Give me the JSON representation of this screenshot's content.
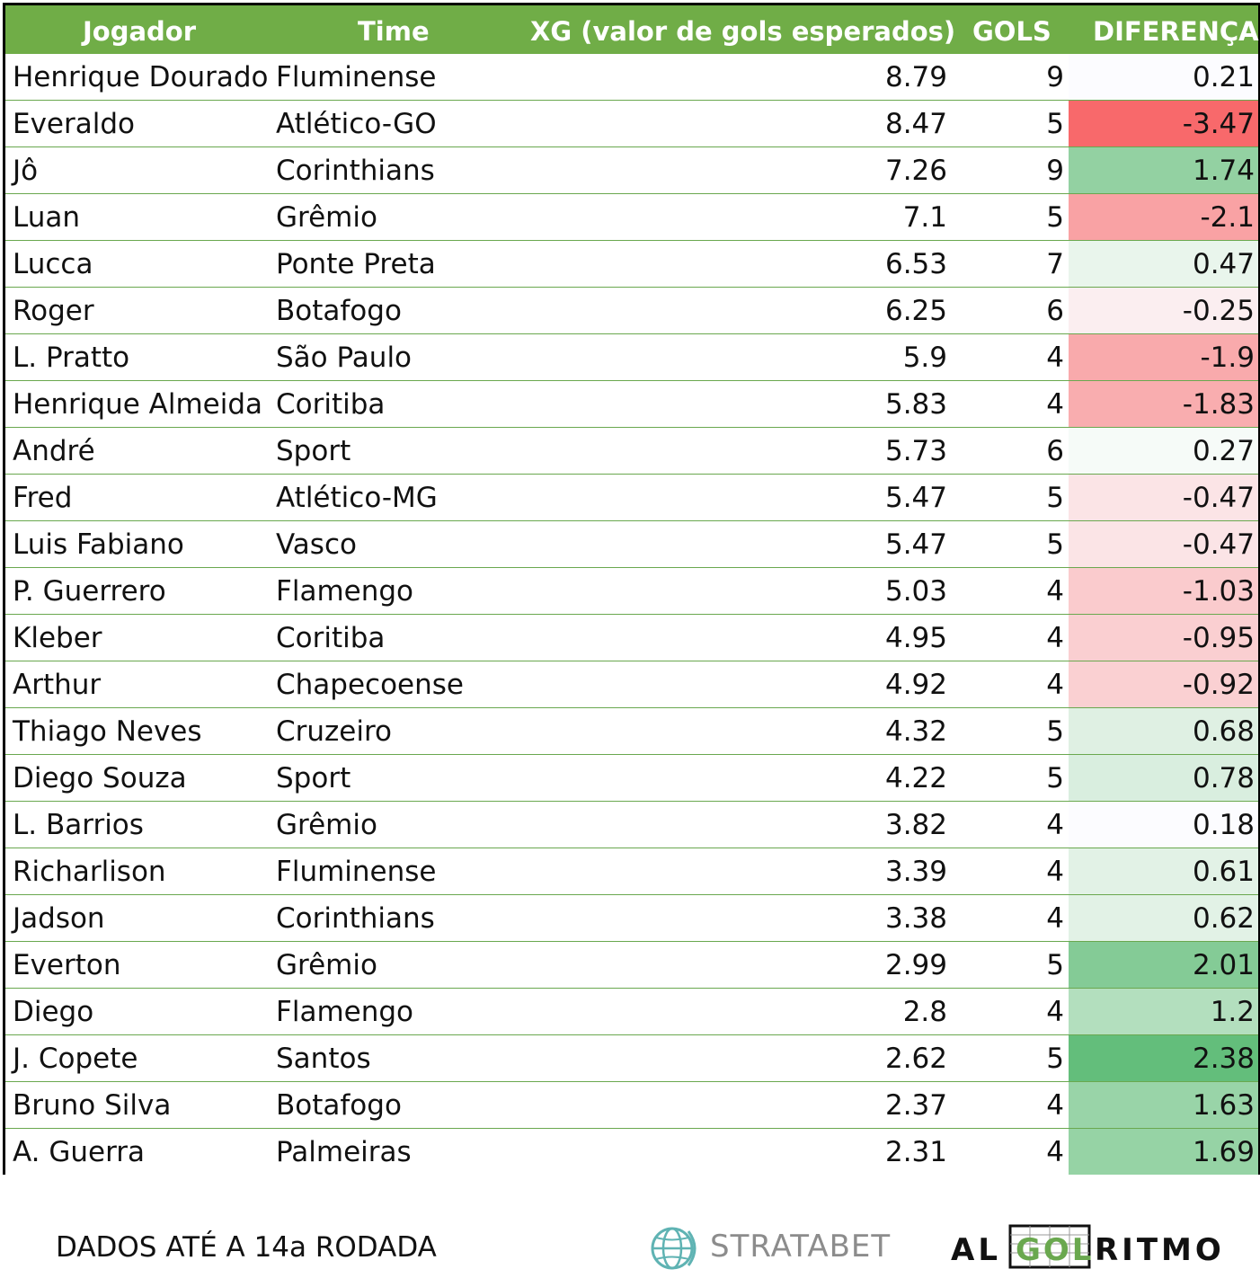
{
  "headers": {
    "player": "Jogador",
    "team": "Time",
    "xg": "XG (valor de gols esperados)",
    "goals": "GOLS",
    "diff": "DIFERENÇA"
  },
  "chart_data": {
    "type": "table",
    "columns": [
      "Jogador",
      "Time",
      "XG (valor de gols esperados)",
      "GOLS",
      "DIFERENÇA"
    ],
    "rows": [
      {
        "player": "Henrique Dourado",
        "team": "Fluminense",
        "xg": "8.79",
        "goals": "9",
        "diff": "0.21",
        "color": "#fcfcff"
      },
      {
        "player": "Everaldo",
        "team": "Atlético-GO",
        "xg": "8.47",
        "goals": "5",
        "diff": "-3.47",
        "color": "#f8696b"
      },
      {
        "player": "Jô",
        "team": "Corinthians",
        "xg": "7.26",
        "goals": "9",
        "diff": "1.74",
        "color": "#93d1a2"
      },
      {
        "player": "Luan",
        "team": "Grêmio",
        "xg": "7.1",
        "goals": "5",
        "diff": "-2.1",
        "color": "#f9a2a4"
      },
      {
        "player": "Lucca",
        "team": "Ponte Preta",
        "xg": "6.53",
        "goals": "7",
        "diff": "0.47",
        "color": "#e9f5ec"
      },
      {
        "player": "Roger",
        "team": "Botafogo",
        "xg": "6.25",
        "goals": "6",
        "diff": "-0.25",
        "color": "#fbeef0"
      },
      {
        "player": "L. Pratto",
        "team": "São Paulo",
        "xg": "5.9",
        "goals": "4",
        "diff": "-1.9",
        "color": "#f9aaac"
      },
      {
        "player": "Henrique Almeida",
        "team": "Coritiba",
        "xg": "5.83",
        "goals": "4",
        "diff": "-1.83",
        "color": "#f9adaf"
      },
      {
        "player": "André",
        "team": "Sport",
        "xg": "5.73",
        "goals": "6",
        "diff": "0.27",
        "color": "#f6fbf8"
      },
      {
        "player": "Fred",
        "team": "Atlético-MG",
        "xg": "5.47",
        "goals": "5",
        "diff": "-0.47",
        "color": "#fbe4e6"
      },
      {
        "player": "Luis Fabiano",
        "team": "Vasco",
        "xg": "5.47",
        "goals": "5",
        "diff": "-0.47",
        "color": "#fbe4e6"
      },
      {
        "player": "P. Guerrero",
        "team": "Flamengo",
        "xg": "5.03",
        "goals": "4",
        "diff": "-1.03",
        "color": "#facbcd"
      },
      {
        "player": "Kleber",
        "team": "Coritiba",
        "xg": "4.95",
        "goals": "4",
        "diff": "-0.95",
        "color": "#facfd1"
      },
      {
        "player": "Arthur",
        "team": "Chapecoense",
        "xg": "4.92",
        "goals": "4",
        "diff": "-0.92",
        "color": "#fad0d2"
      },
      {
        "player": "Thiago Neves",
        "team": "Cruzeiro",
        "xg": "4.32",
        "goals": "5",
        "diff": "0.68",
        "color": "#dff0e3"
      },
      {
        "player": "Diego Souza",
        "team": "Sport",
        "xg": "4.22",
        "goals": "5",
        "diff": "0.78",
        "color": "#d9eedf"
      },
      {
        "player": "L. Barrios",
        "team": "Grêmio",
        "xg": "3.82",
        "goals": "4",
        "diff": "0.18",
        "color": "#fcfcff"
      },
      {
        "player": "Richarlison",
        "team": "Fluminense",
        "xg": "3.39",
        "goals": "4",
        "diff": "0.61",
        "color": "#e2f2e6"
      },
      {
        "player": "Jadson",
        "team": "Corinthians",
        "xg": "3.38",
        "goals": "4",
        "diff": "0.62",
        "color": "#e2f2e6"
      },
      {
        "player": "Everton",
        "team": "Grêmio",
        "xg": "2.99",
        "goals": "5",
        "diff": "2.01",
        "color": "#84cb96"
      },
      {
        "player": "Diego",
        "team": "Flamengo",
        "xg": "2.8",
        "goals": "4",
        "diff": "1.2",
        "color": "#b3dfbe"
      },
      {
        "player": "J. Copete",
        "team": "Santos",
        "xg": "2.62",
        "goals": "5",
        "diff": "2.38",
        "color": "#63be7b"
      },
      {
        "player": "Bruno Silva",
        "team": "Botafogo",
        "xg": "2.37",
        "goals": "4",
        "diff": "1.63",
        "color": "#99d4a8"
      },
      {
        "player": "A. Guerra",
        "team": "Palmeiras",
        "xg": "2.31",
        "goals": "4",
        "diff": "1.69",
        "color": "#96d3a5"
      }
    ]
  },
  "footer": {
    "note": "DADOS ATÉ A 14a RODADA",
    "stratabet": "STRATABET",
    "algoritmo": "ALGOLRITMO"
  },
  "colors": {
    "header_bg": "#70ad47",
    "row_divider": "#6aa84f"
  }
}
